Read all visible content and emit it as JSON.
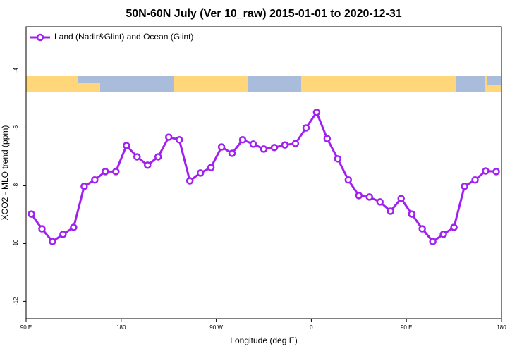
{
  "chart_data": {
    "type": "line",
    "title": "50N-60N July (Ver 10_raw)   2015-01-01 to 2020-12-31",
    "xlabel": "Longitude (deg E)",
    "ylabel": "XCO2 - MLO trend (ppm)",
    "x": [
      95,
      105,
      115,
      125,
      135,
      145,
      155,
      165,
      175,
      185,
      195,
      205,
      215,
      225,
      235,
      245,
      255,
      265,
      275,
      285,
      295,
      305,
      315,
      325,
      335,
      345,
      355,
      365,
      375,
      385,
      395,
      405,
      415,
      425,
      435,
      445,
      455,
      465,
      475,
      485,
      495,
      505,
      515,
      525,
      535
    ],
    "series": [
      {
        "name": "Land (Nadir&Glint) and Ocean (Glint)",
        "color": "#a020f0",
        "values": [
          -8.98,
          -9.49,
          -9.93,
          -9.68,
          -9.44,
          -8.02,
          -7.8,
          -7.51,
          -7.51,
          -6.61,
          -7.0,
          -7.29,
          -7.0,
          -6.32,
          -6.41,
          -7.83,
          -7.56,
          -7.37,
          -6.66,
          -6.88,
          -6.41,
          -6.56,
          -6.73,
          -6.68,
          -6.59,
          -6.54,
          -6.0,
          -5.46,
          -6.37,
          -7.07,
          -7.8,
          -8.34,
          -8.39,
          -8.56,
          -8.88,
          -8.44,
          -8.98,
          -9.49,
          -9.93,
          -9.68,
          -9.44,
          -8.02,
          -7.8,
          -7.49,
          -7.51
        ]
      }
    ],
    "xlim": [
      90,
      540
    ],
    "ylim": [
      -12.6,
      -2.5
    ],
    "xticks": [
      {
        "value": 90,
        "label": "90 E"
      },
      {
        "value": 180,
        "label": "180"
      },
      {
        "value": 270,
        "label": "90 W"
      },
      {
        "value": 360,
        "label": "0"
      },
      {
        "value": 450,
        "label": "90 E"
      },
      {
        "value": 540,
        "label": "180"
      }
    ],
    "yticks": [
      -12,
      -10,
      -8,
      -6,
      -4
    ],
    "legend": "top-left"
  }
}
